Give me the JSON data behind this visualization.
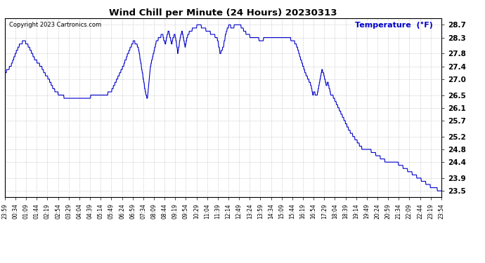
{
  "title": "Wind Chill per Minute (24 Hours) 20230313",
  "ylabel": "Temperature  (°F)",
  "copyright": "Copyright 2023 Cartronics.com",
  "line_color": "#0000cc",
  "ylabel_color": "#0000cc",
  "bg_color": "#ffffff",
  "grid_color": "#bbbbbb",
  "ylim_min": 23.3,
  "ylim_max": 28.9,
  "yticks": [
    23.5,
    23.9,
    24.4,
    24.8,
    25.2,
    25.7,
    26.1,
    26.5,
    27.0,
    27.4,
    27.8,
    28.3,
    28.7
  ],
  "xtick_labels": [
    "23:59",
    "00:34",
    "01:09",
    "01:44",
    "02:19",
    "02:54",
    "03:29",
    "04:04",
    "04:39",
    "05:14",
    "05:49",
    "06:24",
    "06:59",
    "07:34",
    "08:09",
    "08:44",
    "09:19",
    "09:54",
    "10:29",
    "11:04",
    "11:39",
    "12:14",
    "12:49",
    "13:24",
    "13:59",
    "14:34",
    "15:09",
    "15:44",
    "16:19",
    "16:54",
    "17:29",
    "18:04",
    "18:39",
    "19:14",
    "19:49",
    "20:24",
    "20:59",
    "21:34",
    "22:09",
    "22:44",
    "23:19",
    "23:54"
  ],
  "num_points": 1440
}
